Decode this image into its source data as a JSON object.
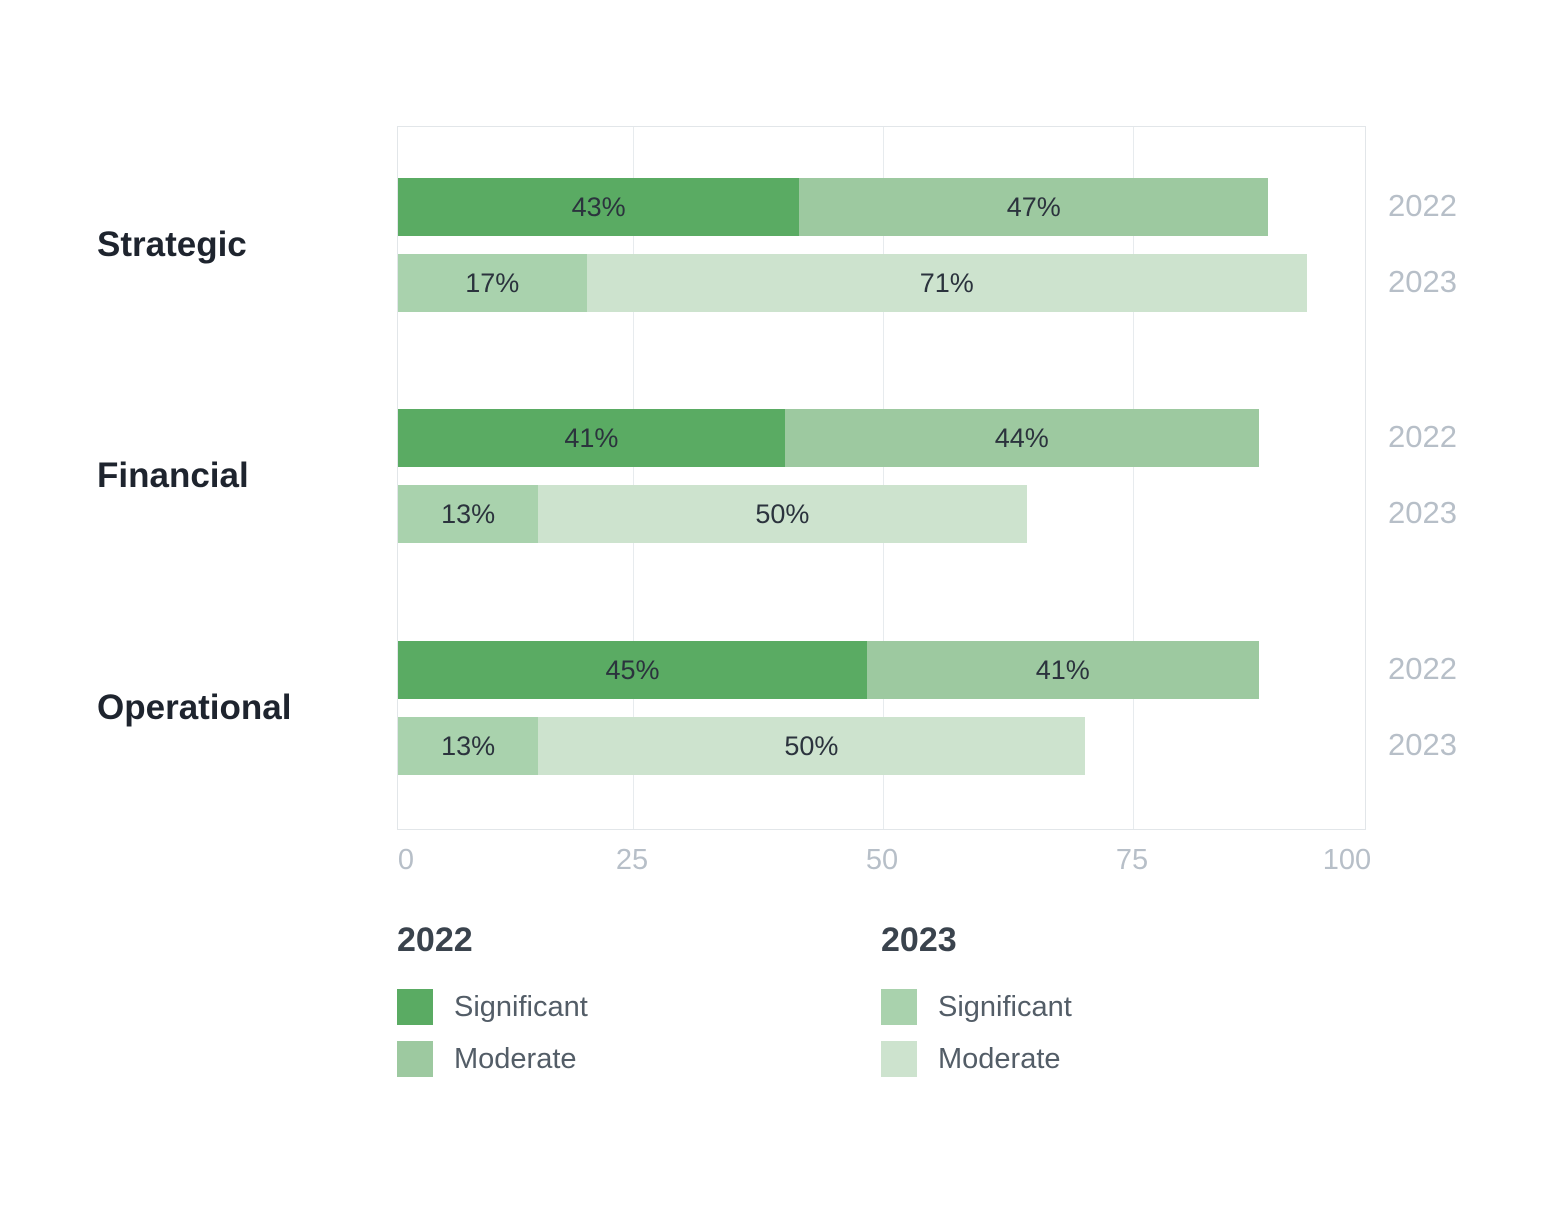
{
  "chart_data": {
    "type": "bar",
    "orientation": "horizontal",
    "stacked": true,
    "title": "",
    "categories": [
      "Strategic",
      "Financial",
      "Operational"
    ],
    "year_groups": [
      "2022",
      "2023"
    ],
    "series_labels": [
      "Significant",
      "Moderate"
    ],
    "xlim": [
      0,
      100
    ],
    "x_ticks": [
      "0",
      "25",
      "50",
      "75",
      "100"
    ],
    "grid": true,
    "legend_position": "bottom",
    "rows": [
      {
        "category": "Strategic",
        "year": "2022",
        "segments": [
          {
            "name": "Significant",
            "value": 43,
            "label": "43%",
            "display_width": 41.5
          },
          {
            "name": "Moderate",
            "value": 47,
            "label": "47%",
            "display_width": 48.5
          }
        ]
      },
      {
        "category": "Strategic",
        "year": "2023",
        "segments": [
          {
            "name": "Significant",
            "value": 17,
            "label": "17%",
            "display_width": 19.5
          },
          {
            "name": "Moderate",
            "value": 71,
            "label": "71%",
            "display_width": 74.5
          }
        ]
      },
      {
        "category": "Financial",
        "year": "2022",
        "segments": [
          {
            "name": "Significant",
            "value": 41,
            "label": "41%",
            "display_width": 40
          },
          {
            "name": "Moderate",
            "value": 44,
            "label": "44%",
            "display_width": 49
          }
        ]
      },
      {
        "category": "Financial",
        "year": "2023",
        "segments": [
          {
            "name": "Significant",
            "value": 13,
            "label": "13%",
            "display_width": 14.5
          },
          {
            "name": "Moderate",
            "value": 50,
            "label": "50%",
            "display_width": 50.5
          }
        ]
      },
      {
        "category": "Operational",
        "year": "2022",
        "segments": [
          {
            "name": "Significant",
            "value": 45,
            "label": "45%",
            "display_width": 48.5
          },
          {
            "name": "Moderate",
            "value": 41,
            "label": "41%",
            "display_width": 40.5
          }
        ]
      },
      {
        "category": "Operational",
        "year": "2023",
        "segments": [
          {
            "name": "Significant",
            "value": 13,
            "label": "13%",
            "display_width": 14.5
          },
          {
            "name": "Moderate",
            "value": 50,
            "label": "50%",
            "display_width": 56.5
          }
        ]
      }
    ],
    "colors": {
      "2022": {
        "Significant": "#5aab63",
        "Moderate": "#9dc9a0"
      },
      "2023": {
        "Significant": "#a9d2ad",
        "Moderate": "#cde3ce"
      }
    }
  },
  "legend": {
    "groups": [
      {
        "title": "2022",
        "items": [
          {
            "label": "Significant",
            "color": "#5aab63"
          },
          {
            "label": "Moderate",
            "color": "#9dc9a0"
          }
        ]
      },
      {
        "title": "2023",
        "items": [
          {
            "label": "Significant",
            "color": "#a9d2ad"
          },
          {
            "label": "Moderate",
            "color": "#cde3ce"
          }
        ]
      }
    ]
  },
  "palette": {
    "background": "#ffffff",
    "frame": "#e2e6e9",
    "grid_line": "#e7ebee",
    "axis_text": "#b7bfc8",
    "category_text": "#1e242e",
    "segment_label_text": "#2b333d",
    "legend_title_text": "#3a434d",
    "legend_label_text": "#535d67"
  }
}
